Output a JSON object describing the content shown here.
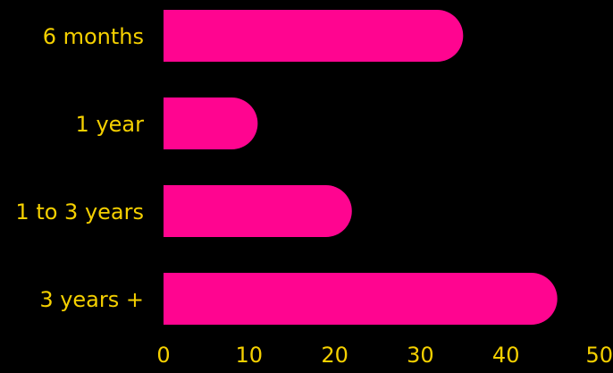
{
  "chart_data": {
    "type": "bar",
    "orientation": "horizontal",
    "categories": [
      "6 months",
      "1 year",
      "1 to 3 years",
      "3 years +"
    ],
    "values": [
      35,
      11,
      22,
      46
    ],
    "xlim": [
      0,
      50
    ],
    "xticks": [
      0,
      10,
      20,
      30,
      40,
      50
    ],
    "grid": false,
    "title": "",
    "xlabel": "",
    "ylabel": ""
  },
  "colors": {
    "background": "#000000",
    "bar": "#FF0590",
    "text": "#F5D000"
  }
}
